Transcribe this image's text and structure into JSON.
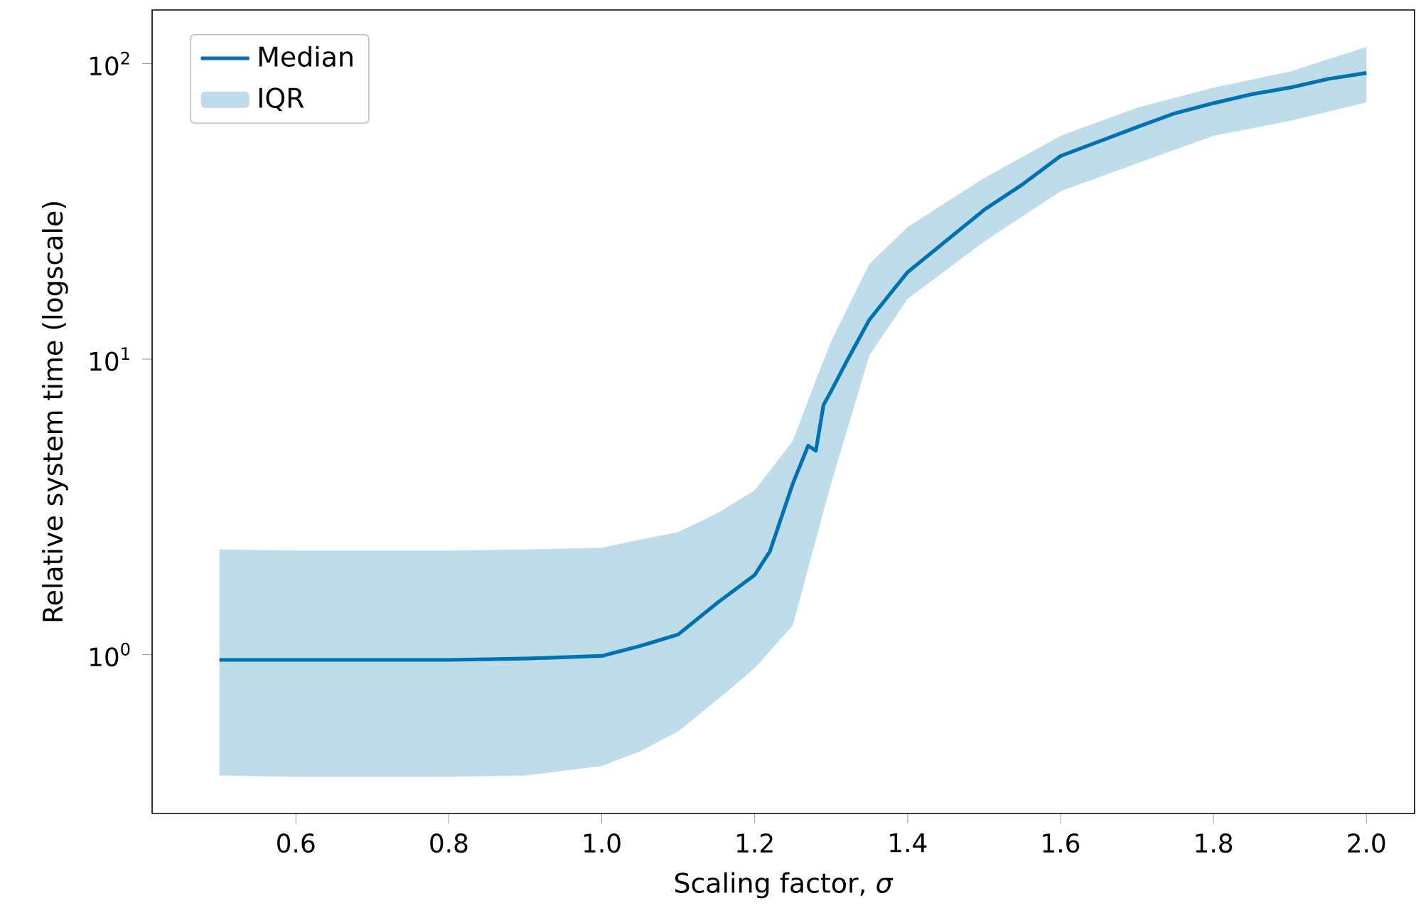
{
  "chart_data": {
    "type": "line",
    "xlabel": "Scaling factor, *σ*",
    "ylabel": "Relative system time (logscale)",
    "log": "y",
    "grid": false,
    "legend": "top left",
    "marker": "none",
    "line_style": "solid",
    "xlim": [
      0.412,
      2.063
    ],
    "ylim": [
      0.29,
      152
    ],
    "xticks": [
      0.6,
      0.8,
      {
        "value": 1,
        "label": "1.0"
      },
      1.2,
      1.4,
      1.6,
      1.8,
      {
        "value": 2,
        "label": "2.0"
      }
    ],
    "yticks": [
      {
        "value": 1,
        "label": "10$^{0}$"
      },
      {
        "value": 10,
        "label": "10$^{1}$"
      },
      {
        "value": 100,
        "label": "10$^{2}$"
      }
    ],
    "series": [
      {
        "name": "Median",
        "color": "#0072b2",
        "x": [
          0.5,
          0.6,
          0.7,
          0.8,
          0.9,
          1.0,
          1.05,
          1.1,
          1.15,
          1.2,
          1.22,
          1.25,
          1.27,
          1.28,
          1.29,
          1.3,
          1.32,
          1.35,
          1.38,
          1.4,
          1.45,
          1.5,
          1.55,
          1.6,
          1.65,
          1.7,
          1.75,
          1.8,
          1.85,
          1.9,
          1.95,
          2.0
        ],
        "values": [
          0.96,
          0.96,
          0.96,
          0.96,
          0.97,
          0.99,
          1.07,
          1.17,
          1.49,
          1.86,
          2.24,
          3.8,
          5.1,
          4.9,
          7.0,
          7.8,
          9.8,
          13.6,
          17.0,
          19.7,
          25.1,
          32,
          39,
          48.7,
          54.5,
          61,
          68,
          73.5,
          78.8,
          83,
          88.8,
          93
        ]
      },
      {
        "name": "IQR",
        "type": "area",
        "color": "#bedcea",
        "x": [
          0.5,
          0.6,
          0.7,
          0.8,
          0.9,
          1.0,
          1.05,
          1.1,
          1.15,
          1.2,
          1.25,
          1.28,
          1.3,
          1.35,
          1.4,
          1.5,
          1.6,
          1.7,
          1.8,
          1.9,
          2.0
        ],
        "values": [
          null,
          null,
          null,
          null,
          null,
          null,
          null,
          null,
          null,
          null,
          null,
          null,
          null,
          null,
          null,
          null,
          null,
          null,
          null,
          null,
          null
        ],
        "lower": [
          0.39,
          0.386,
          0.386,
          0.386,
          0.39,
          0.42,
          0.47,
          0.55,
          0.7,
          0.9,
          1.26,
          2.45,
          3.8,
          10.3,
          16,
          25,
          37,
          46,
          57,
          64,
          74
        ],
        "upper": [
          2.27,
          2.25,
          2.25,
          2.25,
          2.27,
          2.3,
          2.45,
          2.6,
          3.0,
          3.6,
          5.3,
          8.5,
          11.5,
          21,
          28,
          41,
          57,
          71,
          83,
          94,
          114
        ]
      }
    ]
  }
}
